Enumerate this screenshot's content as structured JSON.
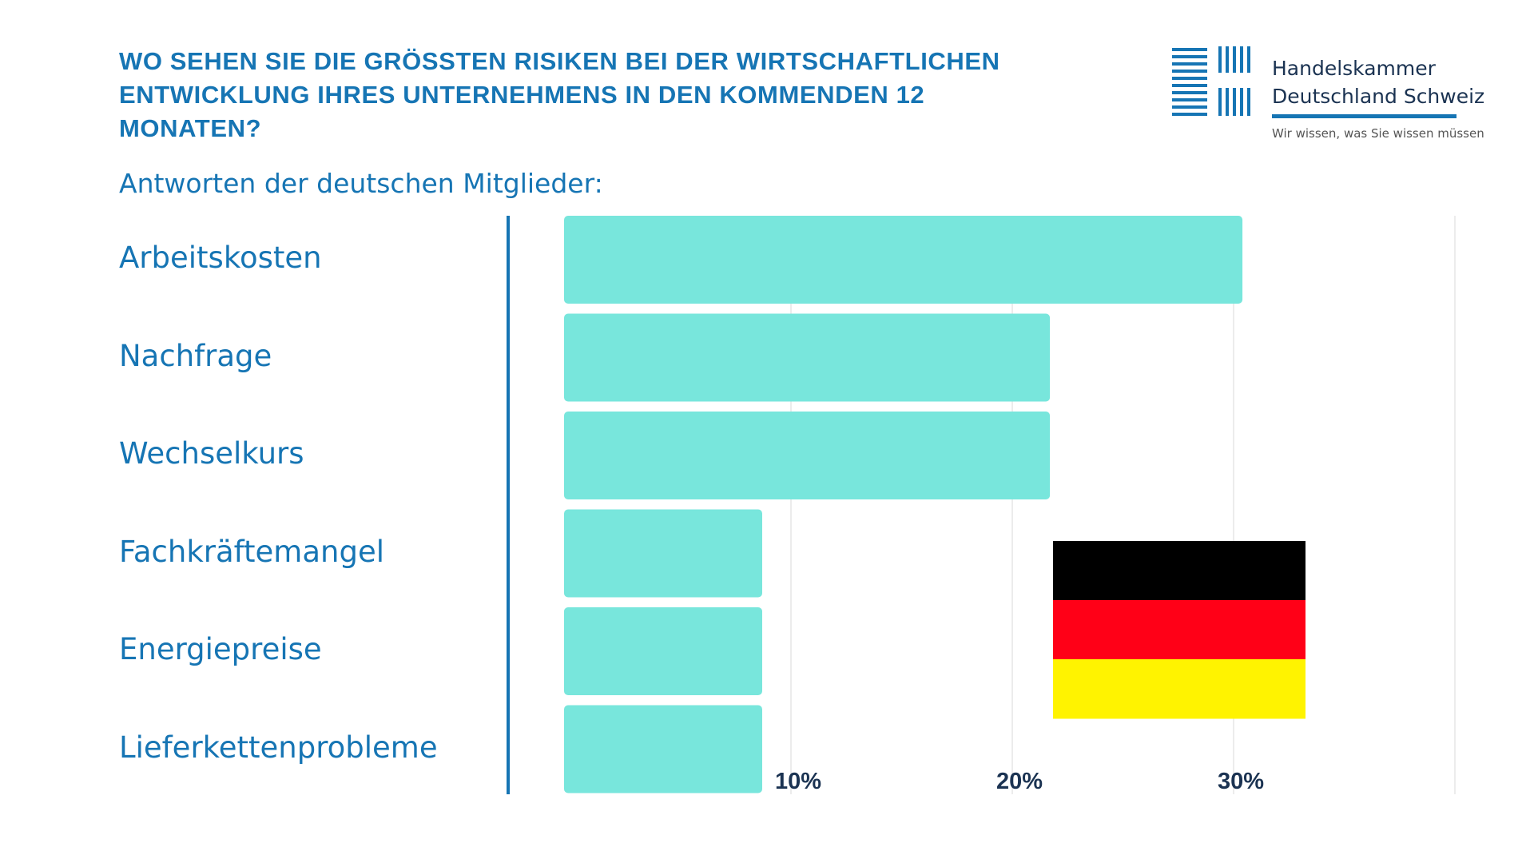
{
  "header": {
    "title_line1": "WO SEHEN SIE DIE GRÖSSTEN RISIKEN BEI DER WIRTSCHAFTLICHEN",
    "title_line2": "ENTWICKLUNG IHRES UNTERNEHMENS IN DEN KOMMENDEN 12",
    "title_line3": "MONATEN?",
    "subtitle": "Antworten der deutschen Mitglieder:"
  },
  "logo": {
    "name_line1": "Handelskammer",
    "name_line2": "Deutschland Schweiz",
    "tagline": "Wir wissen, was Sie wissen müssen",
    "color": "#1675b4"
  },
  "flag": {
    "country": "Deutschland",
    "colors": [
      "#000000",
      "#ff0017",
      "#fff300"
    ]
  },
  "colors": {
    "bar": "#78e6dc",
    "text": "#1675b4",
    "tick": "#1b3352",
    "grid": "#e6e6e6",
    "axis": "#1675b4"
  },
  "chart_data": {
    "type": "bar",
    "orientation": "horizontal",
    "categories": [
      "Arbeitskosten",
      "Nachfrage",
      "Wechselkurs",
      "Fachkräftemangel",
      "Energiepreise",
      "Lieferkettenprobleme"
    ],
    "values": [
      30.4,
      21.7,
      21.7,
      8.7,
      8.7,
      8.7
    ],
    "unit": "%",
    "xlim": [
      0,
      40
    ],
    "ticks": [
      10,
      20,
      30
    ],
    "tick_labels": [
      "10%",
      "20%",
      "30%"
    ],
    "grid": true,
    "legend": "none"
  }
}
